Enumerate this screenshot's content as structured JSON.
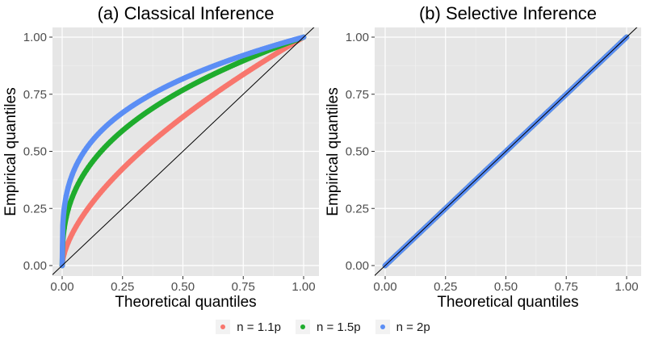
{
  "chart_data": [
    {
      "type": "scatter",
      "title": "(a) Classical Inference",
      "xlabel": "Theoretical quantiles",
      "ylabel": "Empirical quantiles",
      "xlim": [
        0,
        1
      ],
      "ylim": [
        0,
        1
      ],
      "xticks": [
        "0.00",
        "0.25",
        "0.50",
        "0.75",
        "1.00"
      ],
      "yticks": [
        "0.00",
        "0.25",
        "0.50",
        "0.75",
        "1.00"
      ],
      "grid": true,
      "reference_line": "y = x",
      "series": [
        {
          "name": "n = 1.1p",
          "color": "#f8766d",
          "curve": "power",
          "exponent": 0.62
        },
        {
          "name": "n = 1.5p",
          "color": "#1fac2d",
          "curve": "power",
          "exponent": 0.38
        },
        {
          "name": "n = 2p",
          "color": "#5b8ef5",
          "curve": "power",
          "exponent": 0.29
        }
      ]
    },
    {
      "type": "scatter",
      "title": "(b) Selective Inference",
      "xlabel": "Theoretical quantiles",
      "ylabel": "Empirical quantiles",
      "xlim": [
        0,
        1
      ],
      "ylim": [
        0,
        1
      ],
      "xticks": [
        "0.00",
        "0.25",
        "0.50",
        "0.75",
        "1.00"
      ],
      "yticks": [
        "0.00",
        "0.25",
        "0.50",
        "0.75",
        "1.00"
      ],
      "grid": true,
      "reference_line": "y = x",
      "series": [
        {
          "name": "n = 1.1p",
          "color": "#f8766d",
          "curve": "identity"
        },
        {
          "name": "n = 1.5p",
          "color": "#1fac2d",
          "curve": "identity"
        },
        {
          "name": "n = 2p",
          "color": "#5b8ef5",
          "curve": "identity"
        }
      ]
    }
  ],
  "legend": {
    "items": [
      {
        "label": "n = 1.1p",
        "color": "#f8766d"
      },
      {
        "label": "n = 1.5p",
        "color": "#1fac2d"
      },
      {
        "label": "n = 2p",
        "color": "#5b8ef5"
      }
    ]
  }
}
